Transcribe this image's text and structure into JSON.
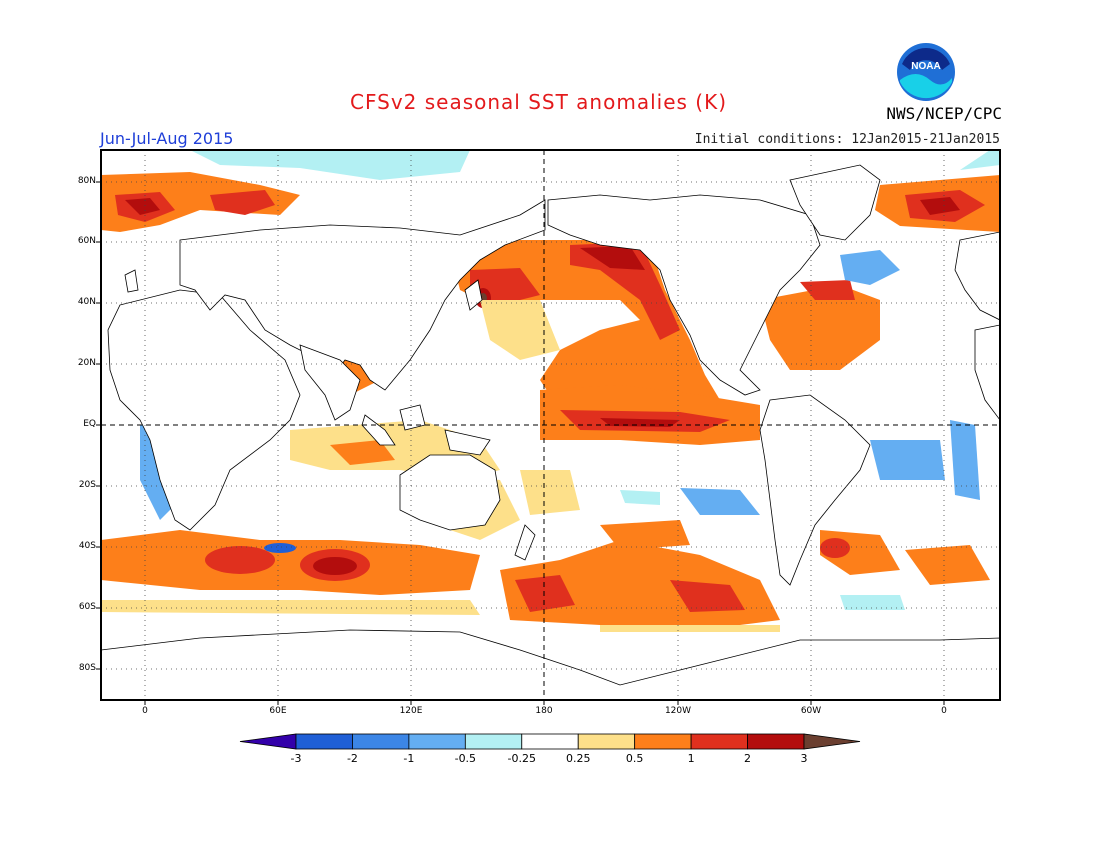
{
  "header": {
    "title": "CFSv2 seasonal SST anomalies (K)",
    "season": "Jun-Jul-Aug 2015",
    "initial_conditions": "Initial conditions: 12Jan2015-21Jan2015",
    "agency": "NWS/NCEP/CPC",
    "logo_text": "NOAA",
    "logo_icon": "noaa-logo"
  },
  "axes": {
    "lat_labels": [
      "80N",
      "60N",
      "40N",
      "20N",
      "EQ",
      "20S",
      "40S",
      "60S",
      "80S"
    ],
    "lon_labels": [
      "0",
      "60E",
      "120E",
      "180",
      "120W",
      "60W",
      "0"
    ]
  },
  "colorbar": {
    "labels": [
      "-3",
      "-2",
      "-1",
      "-0.5",
      "-0.25",
      "0.25",
      "0.5",
      "1",
      "2",
      "3"
    ],
    "colors": [
      "#3300aa",
      "#1f5fd6",
      "#3c86e6",
      "#64aef2",
      "#b3f0f3",
      "#ffffff",
      "#fde08a",
      "#fd7f1a",
      "#e0301e",
      "#b30d0d",
      "#6b3f30"
    ]
  }
}
